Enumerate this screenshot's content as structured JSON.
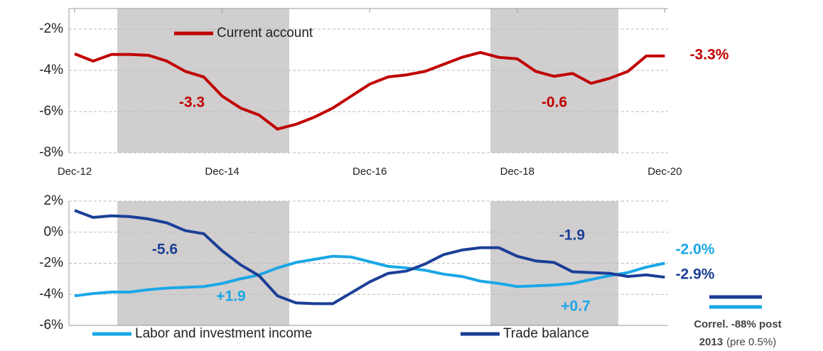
{
  "chart_data": [
    {
      "type": "line",
      "categories": [
        "Dec-12",
        null,
        null,
        null,
        null,
        null,
        null,
        null,
        "Dec-14",
        null,
        null,
        null,
        null,
        null,
        null,
        null,
        "Dec-16",
        null,
        null,
        null,
        null,
        null,
        null,
        null,
        "Dec-18",
        null,
        null,
        null,
        null,
        null,
        null,
        null,
        "Dec-20"
      ],
      "series": [
        {
          "name": "Current account",
          "color": "#c00000",
          "values": [
            -3.2,
            -3.55,
            -3.23,
            -3.23,
            -3.27,
            -3.55,
            -4.05,
            -4.32,
            -5.25,
            -5.83,
            -6.17,
            -6.85,
            -6.62,
            -6.27,
            -5.83,
            -5.25,
            -4.67,
            -4.32,
            -4.22,
            -4.05,
            -3.71,
            -3.37,
            -3.13,
            -3.37,
            -3.44,
            -4.05,
            -4.29,
            -4.15,
            -4.63,
            -4.39,
            -4.05,
            -3.3,
            -3.3
          ]
        }
      ],
      "ylim": [
        -8,
        -1
      ],
      "yticks": [
        {
          "value": -2,
          "label": "-2%"
        },
        {
          "value": -4,
          "label": "-4%"
        },
        {
          "value": -6,
          "label": "-6%"
        },
        {
          "value": -8,
          "label": "-8%"
        }
      ],
      "grid": true,
      "annotations": [
        "-3.3",
        "-0.6",
        "-3.3%"
      ]
    },
    {
      "type": "line",
      "series": [
        {
          "name": "Labor and investment income",
          "color": "#1aa7e6",
          "values": [
            -4.1,
            -3.95,
            -3.85,
            -3.85,
            -3.7,
            -3.6,
            -3.55,
            -3.5,
            -3.3,
            -3.0,
            -2.75,
            -2.3,
            -1.95,
            -1.75,
            -1.55,
            -1.6,
            -1.9,
            -2.2,
            -2.3,
            -2.45,
            -2.7,
            -2.85,
            -3.15,
            -3.3,
            -3.5,
            -3.45,
            -3.4,
            -3.3,
            -3.05,
            -2.8,
            -2.6,
            -2.25,
            -2.0
          ]
        },
        {
          "name": "Trade balance",
          "color": "#1b3f97",
          "values": [
            1.4,
            0.95,
            1.05,
            1.0,
            0.85,
            0.6,
            0.1,
            -0.1,
            -1.2,
            -2.1,
            -2.8,
            -4.1,
            -4.55,
            -4.6,
            -4.6,
            -3.9,
            -3.2,
            -2.65,
            -2.5,
            -2.05,
            -1.45,
            -1.15,
            -1.0,
            -1.0,
            -1.55,
            -1.85,
            -1.95,
            -2.55,
            -2.6,
            -2.65,
            -2.85,
            -2.75,
            -2.9
          ]
        }
      ],
      "ylim": [
        -6,
        2
      ],
      "yticks": [
        {
          "value": 2,
          "label": "2%"
        },
        {
          "value": 0,
          "label": "0%"
        },
        {
          "value": -2,
          "label": "-2%"
        },
        {
          "value": -4,
          "label": "-4%"
        },
        {
          "value": -6,
          "label": "-6%"
        }
      ],
      "grid": true,
      "annotations": [
        "-5.6",
        "+1.9",
        "-1.9",
        "+0.7",
        "-2.0%",
        "-2.9%"
      ],
      "note": [
        "Correl. -88% post",
        "2013",
        "(pre 0.5%)"
      ]
    }
  ]
}
